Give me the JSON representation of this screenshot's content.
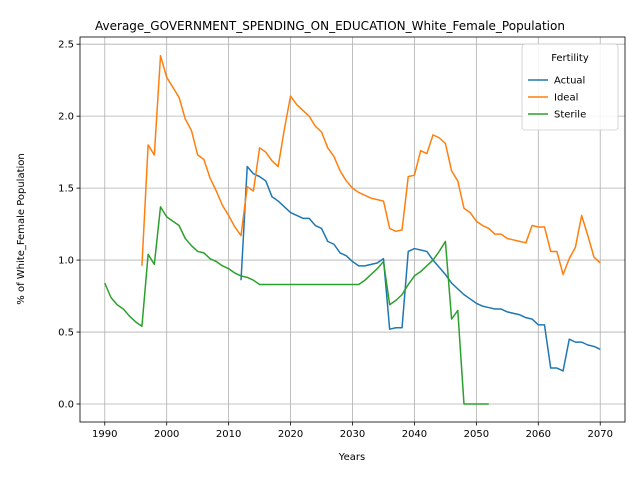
{
  "chart_data": {
    "type": "line",
    "title": "Average_GOVERNMENT_SPENDING_ON_EDUCATION_White_Female_Population",
    "xlabel": "Years",
    "ylabel": "% of White_Female Population",
    "xlim": [
      1986,
      2074
    ],
    "ylim": [
      -0.125,
      2.55
    ],
    "xticks": [
      1990,
      2000,
      2010,
      2020,
      2030,
      2040,
      2050,
      2060,
      2070
    ],
    "yticks": [
      0.0,
      0.5,
      1.0,
      1.5,
      2.0,
      2.5
    ],
    "ytick_labels": [
      "0.0",
      "0.5",
      "1.0",
      "1.5",
      "2.0",
      "2.5"
    ],
    "grid": true,
    "legend": {
      "title": "Fertility",
      "placement": "top-right"
    },
    "series": [
      {
        "name": "Actual",
        "color": "#1f77b4",
        "points": [
          [
            2012,
            0.86
          ],
          [
            2013,
            1.65
          ],
          [
            2014,
            1.6
          ],
          [
            2015,
            1.58
          ],
          [
            2016,
            1.55
          ],
          [
            2017,
            1.44
          ],
          [
            2018,
            1.41
          ],
          [
            2019,
            1.37
          ],
          [
            2020,
            1.33
          ],
          [
            2021,
            1.31
          ],
          [
            2022,
            1.29
          ],
          [
            2023,
            1.29
          ],
          [
            2024,
            1.24
          ],
          [
            2025,
            1.22
          ],
          [
            2026,
            1.13
          ],
          [
            2027,
            1.11
          ],
          [
            2028,
            1.05
          ],
          [
            2029,
            1.03
          ],
          [
            2030,
            0.99
          ],
          [
            2031,
            0.96
          ],
          [
            2032,
            0.96
          ],
          [
            2033,
            0.97
          ],
          [
            2034,
            0.98
          ],
          [
            2035,
            1.01
          ],
          [
            2036,
            0.52
          ],
          [
            2037,
            0.53
          ],
          [
            2038,
            0.53
          ],
          [
            2039,
            1.06
          ],
          [
            2040,
            1.08
          ],
          [
            2041,
            1.07
          ],
          [
            2042,
            1.06
          ],
          [
            2043,
            1.0
          ],
          [
            2044,
            0.95
          ],
          [
            2045,
            0.9
          ],
          [
            2046,
            0.84
          ],
          [
            2047,
            0.8
          ],
          [
            2048,
            0.76
          ],
          [
            2049,
            0.73
          ],
          [
            2050,
            0.7
          ],
          [
            2051,
            0.68
          ],
          [
            2052,
            0.67
          ],
          [
            2053,
            0.66
          ],
          [
            2054,
            0.66
          ],
          [
            2055,
            0.64
          ],
          [
            2056,
            0.63
          ],
          [
            2057,
            0.62
          ],
          [
            2058,
            0.6
          ],
          [
            2059,
            0.59
          ],
          [
            2060,
            0.55
          ],
          [
            2061,
            0.55
          ],
          [
            2062,
            0.25
          ],
          [
            2063,
            0.25
          ],
          [
            2064,
            0.23
          ],
          [
            2065,
            0.45
          ],
          [
            2066,
            0.43
          ],
          [
            2067,
            0.43
          ],
          [
            2068,
            0.41
          ],
          [
            2069,
            0.4
          ],
          [
            2070,
            0.38
          ]
        ]
      },
      {
        "name": "Ideal",
        "color": "#ff7f0e",
        "points": [
          [
            1996,
            0.96
          ],
          [
            1997,
            1.8
          ],
          [
            1998,
            1.73
          ],
          [
            1999,
            2.42
          ],
          [
            2000,
            2.27
          ],
          [
            2001,
            2.2
          ],
          [
            2002,
            2.13
          ],
          [
            2003,
            1.98
          ],
          [
            2004,
            1.9
          ],
          [
            2005,
            1.73
          ],
          [
            2006,
            1.7
          ],
          [
            2007,
            1.57
          ],
          [
            2008,
            1.48
          ],
          [
            2009,
            1.38
          ],
          [
            2010,
            1.31
          ],
          [
            2011,
            1.23
          ],
          [
            2012,
            1.17
          ],
          [
            2013,
            1.51
          ],
          [
            2014,
            1.48
          ],
          [
            2015,
            1.78
          ],
          [
            2016,
            1.75
          ],
          [
            2017,
            1.69
          ],
          [
            2018,
            1.65
          ],
          [
            2019,
            1.91
          ],
          [
            2020,
            2.14
          ],
          [
            2021,
            2.08
          ],
          [
            2022,
            2.04
          ],
          [
            2023,
            2.0
          ],
          [
            2024,
            1.93
          ],
          [
            2025,
            1.89
          ],
          [
            2026,
            1.78
          ],
          [
            2027,
            1.72
          ],
          [
            2028,
            1.62
          ],
          [
            2029,
            1.55
          ],
          [
            2030,
            1.5
          ],
          [
            2031,
            1.47
          ],
          [
            2032,
            1.45
          ],
          [
            2033,
            1.43
          ],
          [
            2034,
            1.42
          ],
          [
            2035,
            1.41
          ],
          [
            2036,
            1.22
          ],
          [
            2037,
            1.2
          ],
          [
            2038,
            1.21
          ],
          [
            2039,
            1.58
          ],
          [
            2040,
            1.59
          ],
          [
            2041,
            1.76
          ],
          [
            2042,
            1.74
          ],
          [
            2043,
            1.87
          ],
          [
            2044,
            1.85
          ],
          [
            2045,
            1.81
          ],
          [
            2046,
            1.62
          ],
          [
            2047,
            1.55
          ],
          [
            2048,
            1.36
          ],
          [
            2049,
            1.33
          ],
          [
            2050,
            1.27
          ],
          [
            2051,
            1.24
          ],
          [
            2052,
            1.22
          ],
          [
            2053,
            1.18
          ],
          [
            2054,
            1.18
          ],
          [
            2055,
            1.15
          ],
          [
            2056,
            1.14
          ],
          [
            2057,
            1.13
          ],
          [
            2058,
            1.12
          ],
          [
            2059,
            1.24
          ],
          [
            2060,
            1.23
          ],
          [
            2061,
            1.23
          ],
          [
            2062,
            1.06
          ],
          [
            2063,
            1.06
          ],
          [
            2064,
            0.9
          ],
          [
            2065,
            1.01
          ],
          [
            2066,
            1.09
          ],
          [
            2067,
            1.31
          ],
          [
            2068,
            1.17
          ],
          [
            2069,
            1.02
          ],
          [
            2070,
            0.98
          ]
        ]
      },
      {
        "name": "Sterile",
        "color": "#2ca02c",
        "points": [
          [
            1990,
            0.84
          ],
          [
            1991,
            0.74
          ],
          [
            1992,
            0.69
          ],
          [
            1993,
            0.66
          ],
          [
            1994,
            0.61
          ],
          [
            1995,
            0.57
          ],
          [
            1996,
            0.54
          ],
          [
            1997,
            1.04
          ],
          [
            1998,
            0.97
          ],
          [
            1999,
            1.37
          ],
          [
            2000,
            1.3
          ],
          [
            2001,
            1.27
          ],
          [
            2002,
            1.24
          ],
          [
            2003,
            1.15
          ],
          [
            2004,
            1.1
          ],
          [
            2005,
            1.06
          ],
          [
            2006,
            1.05
          ],
          [
            2007,
            1.01
          ],
          [
            2008,
            0.99
          ],
          [
            2009,
            0.96
          ],
          [
            2010,
            0.94
          ],
          [
            2011,
            0.91
          ],
          [
            2012,
            0.89
          ],
          [
            2013,
            0.88
          ],
          [
            2014,
            0.86
          ],
          [
            2015,
            0.83
          ],
          [
            2016,
            0.83
          ],
          [
            2017,
            0.83
          ],
          [
            2018,
            0.83
          ],
          [
            2019,
            0.83
          ],
          [
            2020,
            0.83
          ],
          [
            2021,
            0.83
          ],
          [
            2022,
            0.83
          ],
          [
            2023,
            0.83
          ],
          [
            2024,
            0.83
          ],
          [
            2025,
            0.83
          ],
          [
            2026,
            0.83
          ],
          [
            2027,
            0.83
          ],
          [
            2028,
            0.83
          ],
          [
            2029,
            0.83
          ],
          [
            2030,
            0.83
          ],
          [
            2031,
            0.83
          ],
          [
            2032,
            0.86
          ],
          [
            2033,
            0.9
          ],
          [
            2034,
            0.94
          ],
          [
            2035,
            0.99
          ],
          [
            2036,
            0.69
          ],
          [
            2037,
            0.72
          ],
          [
            2038,
            0.76
          ],
          [
            2039,
            0.83
          ],
          [
            2040,
            0.89
          ],
          [
            2041,
            0.92
          ],
          [
            2042,
            0.96
          ],
          [
            2043,
            1.0
          ],
          [
            2044,
            1.06
          ],
          [
            2045,
            1.13
          ],
          [
            2046,
            0.59
          ],
          [
            2047,
            0.65
          ],
          [
            2048,
            0.0
          ],
          [
            2049,
            0.0
          ],
          [
            2050,
            0.0
          ],
          [
            2051,
            0.0
          ],
          [
            2052,
            0.0
          ]
        ]
      }
    ]
  }
}
